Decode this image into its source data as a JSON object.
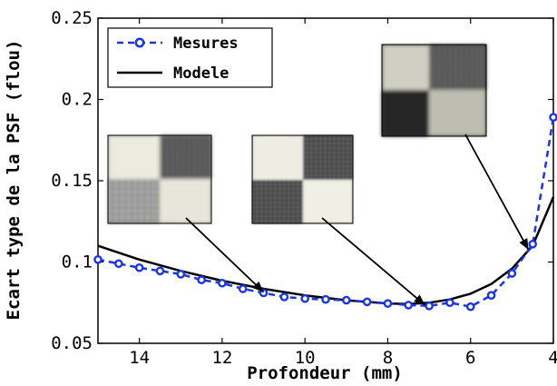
{
  "chart_data": {
    "type": "line",
    "xlabel": "Profondeur (mm)",
    "ylabel": "Ecart type de la PSF (flou)",
    "xlim": [
      15,
      4
    ],
    "ylim": [
      0.05,
      0.25
    ],
    "x_reversed": true,
    "x_ticks": [
      14,
      12,
      10,
      8,
      6,
      4
    ],
    "x_tick_labels": [
      "14",
      "12",
      "10",
      "8",
      "6",
      "4"
    ],
    "y_ticks": [
      0.05,
      0.1,
      0.15,
      0.2,
      0.25
    ],
    "y_tick_labels": [
      "0.05",
      "0.1",
      "0.15",
      "0.2",
      "0.25"
    ],
    "legend_position": "top-left",
    "series": [
      {
        "name": "Mesures",
        "style": "dashed-circles",
        "color": "#1a35e8",
        "x": [
          15,
          14.5,
          14,
          13.5,
          13,
          12.5,
          12,
          11.5,
          11,
          10.5,
          10,
          9.5,
          9,
          8.5,
          8,
          7.5,
          7,
          6.5,
          6,
          5.5,
          5,
          4.5,
          4
        ],
        "y": [
          0.1015,
          0.099,
          0.0965,
          0.0945,
          0.0925,
          0.089,
          0.087,
          0.0835,
          0.081,
          0.0785,
          0.0775,
          0.077,
          0.0765,
          0.0755,
          0.0745,
          0.0735,
          0.073,
          0.075,
          0.0725,
          0.0795,
          0.093,
          0.111,
          0.189
        ]
      },
      {
        "name": "Modele",
        "style": "solid",
        "color": "#000000",
        "x": [
          15,
          14,
          13,
          12,
          11,
          10,
          9,
          8,
          7.5,
          7,
          6.5,
          6,
          5.5,
          5,
          4.5,
          4
        ],
        "y": [
          0.11,
          0.1015,
          0.0945,
          0.0885,
          0.0835,
          0.0795,
          0.0765,
          0.0745,
          0.0742,
          0.075,
          0.077,
          0.0805,
          0.0865,
          0.096,
          0.11,
          0.14
        ]
      }
    ],
    "annotations": [
      {
        "name": "inset-psf-near",
        "image": "blurred-checkerboard-strong",
        "arrow_to": [
          11.0,
          0.0815
        ]
      },
      {
        "name": "inset-psf-mid",
        "image": "sharp-checkerboard",
        "arrow_to": [
          7.1,
          0.0735
        ]
      },
      {
        "name": "inset-psf-far",
        "image": "blurred-checkerboard-strong",
        "arrow_to": [
          4.6,
          0.1075
        ]
      }
    ]
  }
}
